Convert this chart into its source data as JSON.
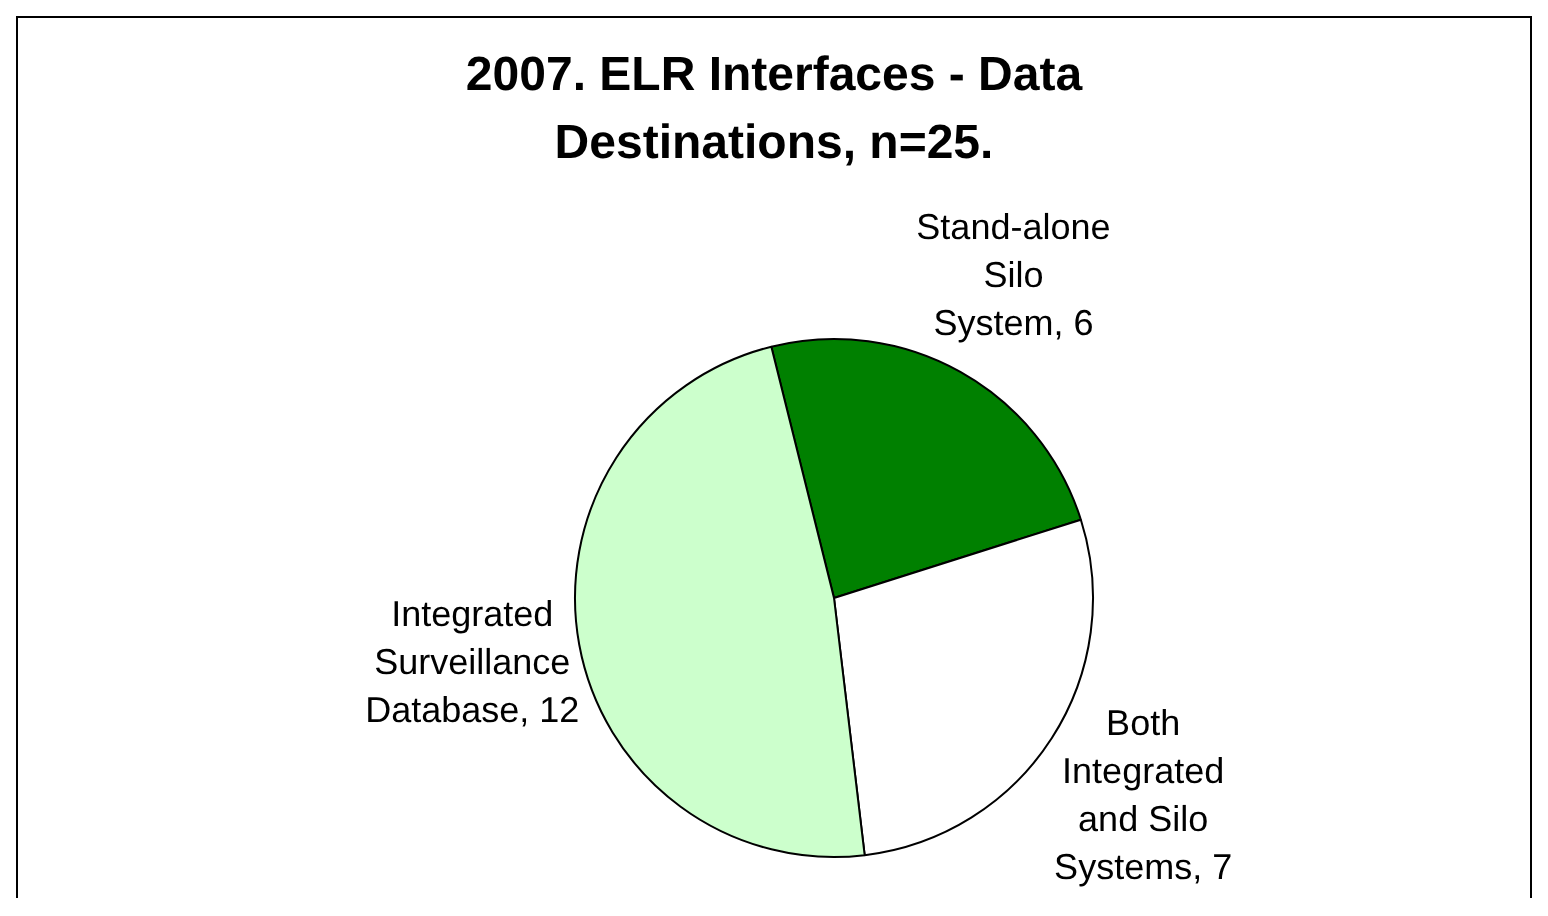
{
  "chart_data": {
    "type": "pie",
    "title": "2007. ELR Interfaces - Data Destinations, n=25.",
    "categories": [
      "Stand-alone Silo System",
      "Both Integrated and Silo Systems",
      "Integrated Surveillance Database"
    ],
    "values": [
      6,
      7,
      12
    ],
    "value_labels": [
      ", 6",
      ", 7",
      ", 12"
    ],
    "colors": [
      "#008000",
      "#ffffff",
      "#ccffcc"
    ],
    "legend": false
  }
}
